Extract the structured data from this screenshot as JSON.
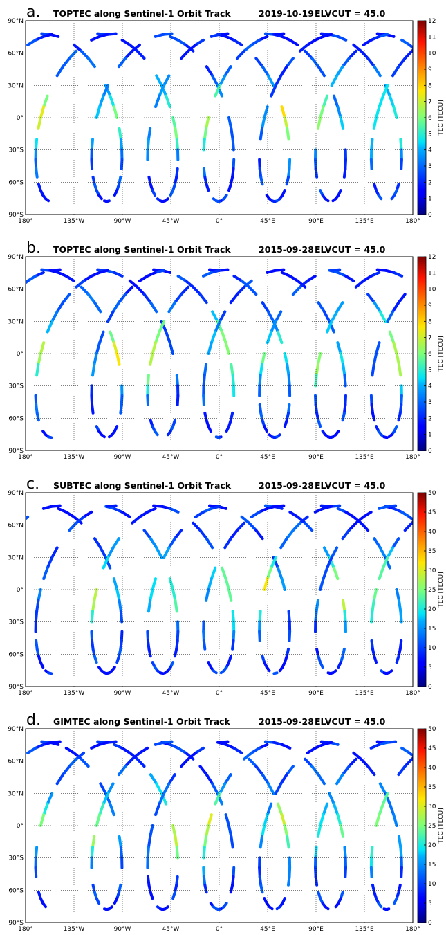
{
  "chart_data": [
    {
      "type": "map",
      "label": "a.",
      "title": "TOPTEC along Sentinel-1 Orbit Track",
      "date": "2019-10-19",
      "elvcut": "ELVCUT = 45.0",
      "xlim": [
        -180,
        180
      ],
      "xticks": [
        {
          "value": -180,
          "label": "180°"
        },
        {
          "value": -135,
          "label": "135°W"
        },
        {
          "value": -90,
          "label": "90°W"
        },
        {
          "value": -45,
          "label": "45°W"
        },
        {
          "value": 0,
          "label": "0°"
        },
        {
          "value": 45,
          "label": "45°E"
        },
        {
          "value": 90,
          "label": "90°E"
        },
        {
          "value": 135,
          "label": "135°E"
        },
        {
          "value": 180,
          "label": "180°"
        }
      ],
      "ylim": [
        -90,
        90
      ],
      "yticks": [
        {
          "value": -90,
          "label": "90°S"
        },
        {
          "value": -60,
          "label": "60°S"
        },
        {
          "value": -30,
          "label": "30°S"
        },
        {
          "value": 0,
          "label": "0°"
        },
        {
          "value": 30,
          "label": "30°N"
        },
        {
          "value": 60,
          "label": "60°N"
        },
        {
          "value": 90,
          "label": "90°N"
        }
      ],
      "grid": true,
      "colormap": "jet",
      "clim": [
        0,
        12
      ],
      "cticks": [
        0,
        1,
        2,
        3,
        4,
        5,
        6,
        7,
        8,
        9,
        10,
        11,
        12
      ],
      "clabel": "TEC [TECU]"
    },
    {
      "type": "map",
      "label": "b.",
      "title": "TOPTEC along Sentinel-1 Orbit Track",
      "date": "2015-09-28",
      "elvcut": "ELVCUT = 45.0",
      "xlim": [
        -180,
        180
      ],
      "xticks": [
        {
          "value": -180,
          "label": "180°"
        },
        {
          "value": -135,
          "label": "135°W"
        },
        {
          "value": -90,
          "label": "90°W"
        },
        {
          "value": -45,
          "label": "45°W"
        },
        {
          "value": 0,
          "label": "0°"
        },
        {
          "value": 45,
          "label": "45°E"
        },
        {
          "value": 90,
          "label": "90°E"
        },
        {
          "value": 135,
          "label": "135°E"
        },
        {
          "value": 180,
          "label": "180°"
        }
      ],
      "ylim": [
        -90,
        90
      ],
      "yticks": [
        {
          "value": -90,
          "label": "90°S"
        },
        {
          "value": -60,
          "label": "60°S"
        },
        {
          "value": -30,
          "label": "30°S"
        },
        {
          "value": 0,
          "label": "0°"
        },
        {
          "value": 30,
          "label": "30°N"
        },
        {
          "value": 60,
          "label": "60°N"
        },
        {
          "value": 90,
          "label": "90°N"
        }
      ],
      "grid": true,
      "colormap": "jet",
      "clim": [
        0,
        12
      ],
      "cticks": [
        0,
        1,
        2,
        3,
        4,
        5,
        6,
        7,
        8,
        9,
        10,
        11,
        12
      ],
      "clabel": "TEC [TECU]"
    },
    {
      "type": "map",
      "label": "c.",
      "title": "SUBTEC along Sentinel-1 Orbit Track",
      "date": "2015-09-28",
      "elvcut": "ELVCUT = 45.0",
      "xlim": [
        -180,
        180
      ],
      "xticks": [
        {
          "value": -180,
          "label": "180°"
        },
        {
          "value": -135,
          "label": "135°W"
        },
        {
          "value": -90,
          "label": "90°W"
        },
        {
          "value": -45,
          "label": "45°W"
        },
        {
          "value": 0,
          "label": "0°"
        },
        {
          "value": 45,
          "label": "45°E"
        },
        {
          "value": 90,
          "label": "90°E"
        },
        {
          "value": 135,
          "label": "135°E"
        },
        {
          "value": 180,
          "label": "180°"
        }
      ],
      "ylim": [
        -90,
        90
      ],
      "yticks": [
        {
          "value": -90,
          "label": "90°S"
        },
        {
          "value": -60,
          "label": "60°S"
        },
        {
          "value": -30,
          "label": "30°S"
        },
        {
          "value": 0,
          "label": "0°"
        },
        {
          "value": 30,
          "label": "30°N"
        },
        {
          "value": 60,
          "label": "60°N"
        },
        {
          "value": 90,
          "label": "90°N"
        }
      ],
      "grid": true,
      "colormap": "jet",
      "clim": [
        0,
        50
      ],
      "cticks": [
        0,
        5,
        10,
        15,
        20,
        25,
        30,
        35,
        40,
        45,
        50
      ],
      "clabel": "TEC [TECU]"
    },
    {
      "type": "map",
      "label": "d.",
      "title": "GIMTEC along Sentinel-1 Orbit Track",
      "date": "2015-09-28",
      "elvcut": "ELVCUT = 45.0",
      "xlim": [
        -180,
        180
      ],
      "xticks": [
        {
          "value": -180,
          "label": "180°"
        },
        {
          "value": -135,
          "label": "135°W"
        },
        {
          "value": -90,
          "label": "90°W"
        },
        {
          "value": -45,
          "label": "45°W"
        },
        {
          "value": 0,
          "label": "0°"
        },
        {
          "value": 45,
          "label": "45°E"
        },
        {
          "value": 90,
          "label": "90°E"
        },
        {
          "value": 135,
          "label": "135°E"
        },
        {
          "value": 180,
          "label": "180°"
        }
      ],
      "ylim": [
        -90,
        90
      ],
      "yticks": [
        {
          "value": -90,
          "label": "90°S"
        },
        {
          "value": -60,
          "label": "60°S"
        },
        {
          "value": -30,
          "label": "30°S"
        },
        {
          "value": 0,
          "label": "0°"
        },
        {
          "value": 30,
          "label": "30°N"
        },
        {
          "value": 60,
          "label": "60°N"
        },
        {
          "value": 90,
          "label": "90°N"
        }
      ],
      "grid": true,
      "colormap": "jet",
      "clim": [
        0,
        50
      ],
      "cticks": [
        0,
        5,
        10,
        15,
        20,
        25,
        30,
        35,
        40,
        45,
        50
      ],
      "clabel": "TEC [TECU]"
    }
  ]
}
